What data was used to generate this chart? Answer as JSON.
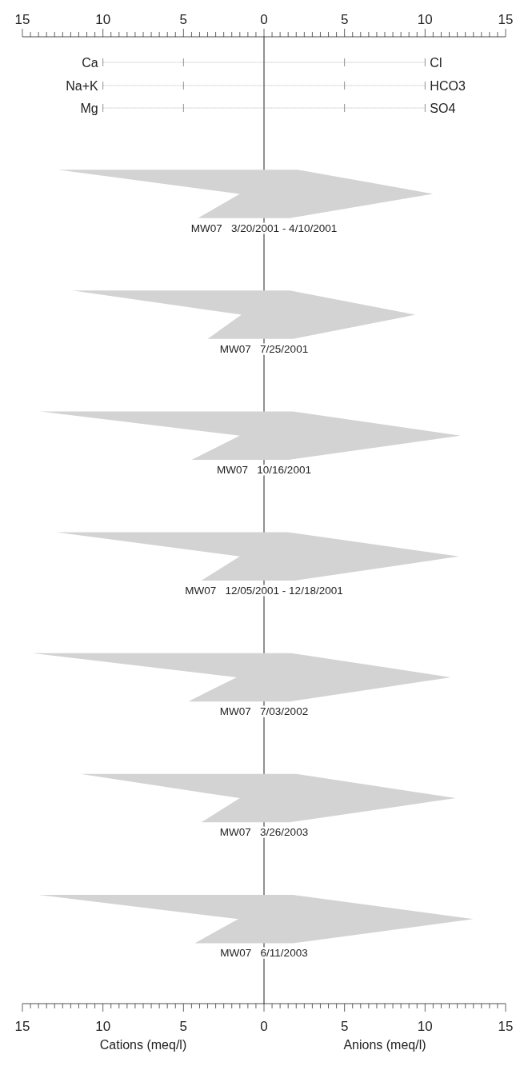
{
  "chart_data": {
    "type": "area",
    "orientation": "horizontal",
    "annotations": [
      "Ca",
      "Na+K",
      "Mg",
      "Cl",
      "HCO3",
      "SO4",
      "Cations (meq/l)",
      "Anions (meq/l)"
    ],
    "categories": [
      null,
      null,
      null,
      null,
      null,
      null,
      null,
      null,
      null,
      null,
      null,
      null,
      null,
      null,
      null,
      null,
      null,
      null,
      null,
      null,
      null,
      null,
      null,
      null,
      null,
      null,
      null,
      null,
      null,
      null,
      null,
      null,
      null,
      null,
      null,
      null,
      null,
      null,
      null,
      null
    ],
    "xlim": [
      -15,
      15
    ],
    "x2lim": [
      -15,
      15
    ],
    "xticks": [
      {
        "value": -15,
        "label": "15"
      },
      {
        "value": -14.5,
        "label": null
      },
      {
        "value": -14,
        "label": null
      },
      {
        "value": -13.5,
        "label": null
      },
      {
        "value": -13,
        "label": null
      },
      {
        "value": -12.5,
        "label": null
      },
      {
        "value": -12,
        "label": null
      },
      {
        "value": -11.5,
        "label": null
      },
      {
        "value": -11,
        "label": null
      },
      {
        "value": -10.5,
        "label": null
      },
      {
        "value": -10,
        "label": "10"
      },
      {
        "value": -9.5,
        "label": null
      },
      {
        "value": -9,
        "label": null
      },
      {
        "value": -8.5,
        "label": null
      },
      {
        "value": -8,
        "label": null
      },
      {
        "value": -7.5,
        "label": null
      },
      {
        "value": -7,
        "label": null
      },
      {
        "value": -6.5,
        "label": null
      },
      {
        "value": -6,
        "label": null
      },
      {
        "value": -5.5,
        "label": null
      },
      {
        "value": -5,
        "label": "5"
      },
      {
        "value": -4.5,
        "label": null
      },
      {
        "value": -4,
        "label": null
      },
      {
        "value": -3.5,
        "label": null
      },
      {
        "value": -3,
        "label": null
      },
      {
        "value": -2.5,
        "label": null
      },
      {
        "value": -2,
        "label": null
      },
      {
        "value": -1.5,
        "label": null
      },
      {
        "value": -1,
        "label": null
      },
      {
        "value": -0.5,
        "label": null
      },
      0,
      {
        "value": 0.5,
        "label": null
      },
      {
        "value": 1,
        "label": null
      },
      {
        "value": 1.5,
        "label": null
      },
      {
        "value": 2,
        "label": null
      },
      {
        "value": 2.5,
        "label": null
      },
      {
        "value": 3,
        "label": null
      },
      {
        "value": 3.5,
        "label": null
      },
      {
        "value": 4,
        "label": null
      },
      {
        "value": 4.5,
        "label": null
      },
      5,
      {
        "value": 5.5,
        "label": null
      },
      {
        "value": 6,
        "label": null
      },
      {
        "value": 6.5,
        "label": null
      },
      {
        "value": 7,
        "label": null
      },
      {
        "value": 7.5,
        "label": null
      },
      {
        "value": 8,
        "label": null
      },
      {
        "value": 8.5,
        "label": null
      },
      {
        "value": 9,
        "label": null
      },
      {
        "value": 9.5,
        "label": null
      },
      10,
      {
        "value": 10.5,
        "label": null
      },
      {
        "value": 11,
        "label": null
      },
      {
        "value": 11.5,
        "label": null
      },
      {
        "value": 12,
        "label": null
      },
      {
        "value": 12.5,
        "label": null
      },
      {
        "value": 13,
        "label": null
      },
      {
        "value": 13.5,
        "label": null
      },
      {
        "value": 14,
        "label": null
      },
      {
        "value": 14.5,
        "label": null
      },
      15
    ],
    "x2ticks": [
      {
        "value": -15,
        "label": "15"
      },
      {
        "value": -14.5,
        "label": null
      },
      {
        "value": -14,
        "label": null
      },
      {
        "value": -13.5,
        "label": null
      },
      {
        "value": -13,
        "label": null
      },
      {
        "value": -12.5,
        "label": null
      },
      {
        "value": -12,
        "label": null
      },
      {
        "value": -11.5,
        "label": null
      },
      {
        "value": -11,
        "label": null
      },
      {
        "value": -10.5,
        "label": null
      },
      {
        "value": -10,
        "label": "10"
      },
      {
        "value": -9.5,
        "label": null
      },
      {
        "value": -9,
        "label": null
      },
      {
        "value": -8.5,
        "label": null
      },
      {
        "value": -8,
        "label": null
      },
      {
        "value": -7.5,
        "label": null
      },
      {
        "value": -7,
        "label": null
      },
      {
        "value": -6.5,
        "label": null
      },
      {
        "value": -6,
        "label": null
      },
      {
        "value": -5.5,
        "label": null
      },
      {
        "value": -5,
        "label": "5"
      },
      {
        "value": -4.5,
        "label": null
      },
      {
        "value": -4,
        "label": null
      },
      {
        "value": -3.5,
        "label": null
      },
      {
        "value": -3,
        "label": null
      },
      {
        "value": -2.5,
        "label": null
      },
      {
        "value": -2,
        "label": null
      },
      {
        "value": -1.5,
        "label": null
      },
      {
        "value": -1,
        "label": null
      },
      {
        "value": -0.5,
        "label": null
      },
      0,
      {
        "value": 0.5,
        "label": null
      },
      {
        "value": 1,
        "label": null
      },
      {
        "value": 1.5,
        "label": null
      },
      {
        "value": 2,
        "label": null
      },
      {
        "value": 2.5,
        "label": null
      },
      {
        "value": 3,
        "label": null
      },
      {
        "value": 3.5,
        "label": null
      },
      {
        "value": 4,
        "label": null
      },
      {
        "value": 4.5,
        "label": null
      },
      5,
      {
        "value": 5.5,
        "label": null
      },
      {
        "value": 6,
        "label": null
      },
      {
        "value": 6.5,
        "label": null
      },
      {
        "value": 7,
        "label": null
      },
      {
        "value": 7.5,
        "label": null
      },
      {
        "value": 8,
        "label": null
      },
      {
        "value": 8.5,
        "label": null
      },
      {
        "value": 9,
        "label": null
      },
      {
        "value": 9.5,
        "label": null
      },
      10,
      {
        "value": 10.5,
        "label": null
      },
      {
        "value": 11,
        "label": null
      },
      {
        "value": 11.5,
        "label": null
      },
      {
        "value": 12,
        "label": null
      },
      {
        "value": 12.5,
        "label": null
      },
      {
        "value": 13,
        "label": null
      },
      {
        "value": 13.5,
        "label": null
      },
      {
        "value": 14,
        "label": null
      },
      {
        "value": 14.5,
        "label": null
      },
      15
    ],
    "series": [
      {
        "name": "MW07   3/20/2001 - 4/10/2001",
        "color": "#d3d3d3",
        "values": [
          null,
          null,
          null,
          null,
          null,
          -12.8,
          -1.5,
          -4.1,
          null,
          null,
          null,
          null,
          null,
          null,
          null,
          null,
          null,
          null,
          null,
          null,
          null,
          null,
          null,
          null,
          null,
          null,
          null,
          null,
          null,
          null,
          null,
          null,
          null,
          null,
          null,
          null,
          null,
          null,
          null,
          null
        ]
      },
      {
        "color": "#d3d3d3",
        "values": [
          null,
          null,
          null,
          null,
          null,
          2.1,
          10.5,
          1.6,
          null,
          null,
          null,
          null,
          null,
          null,
          null,
          null,
          null,
          null,
          null,
          null,
          null,
          null,
          null,
          null,
          null,
          null,
          null,
          null,
          null,
          null,
          null,
          null,
          null,
          null,
          null,
          null,
          null,
          null,
          null,
          null
        ]
      },
      {
        "name": "MW07   7/25/2001",
        "color": "#d3d3d3",
        "values": [
          null,
          null,
          null,
          null,
          null,
          null,
          null,
          null,
          null,
          null,
          -11.9,
          -1.4,
          -3.5,
          null,
          null,
          null,
          null,
          null,
          null,
          null,
          null,
          null,
          null,
          null,
          null,
          null,
          null,
          null,
          null,
          null,
          null,
          null,
          null,
          null,
          null,
          null,
          null,
          null,
          null,
          null
        ]
      },
      {
        "color": "#d3d3d3",
        "values": [
          null,
          null,
          null,
          null,
          null,
          null,
          null,
          null,
          null,
          null,
          1.6,
          9.4,
          1.8,
          null,
          null,
          null,
          null,
          null,
          null,
          null,
          null,
          null,
          null,
          null,
          null,
          null,
          null,
          null,
          null,
          null,
          null,
          null,
          null,
          null,
          null,
          null,
          null,
          null,
          null,
          null
        ]
      },
      {
        "name": "MW07   10/16/2001",
        "color": "#d3d3d3",
        "values": [
          null,
          null,
          null,
          null,
          null,
          null,
          null,
          null,
          null,
          null,
          null,
          null,
          null,
          null,
          null,
          -13.9,
          -1.5,
          -4.5,
          null,
          null,
          null,
          null,
          null,
          null,
          null,
          null,
          null,
          null,
          null,
          null,
          null,
          null,
          null,
          null,
          null,
          null,
          null,
          null,
          null,
          null
        ]
      },
      {
        "color": "#d3d3d3",
        "values": [
          null,
          null,
          null,
          null,
          null,
          null,
          null,
          null,
          null,
          null,
          null,
          null,
          null,
          null,
          null,
          1.8,
          12.2,
          1.5,
          null,
          null,
          null,
          null,
          null,
          null,
          null,
          null,
          null,
          null,
          null,
          null,
          null,
          null,
          null,
          null,
          null,
          null,
          null,
          null,
          null,
          null
        ]
      },
      {
        "name": "MW07   12/05/2001 - 12/18/2001",
        "color": "#d3d3d3",
        "values": [
          null,
          null,
          null,
          null,
          null,
          null,
          null,
          null,
          null,
          null,
          null,
          null,
          null,
          null,
          null,
          null,
          null,
          null,
          null,
          null,
          -12.9,
          -1.5,
          -3.9,
          null,
          null,
          null,
          null,
          null,
          null,
          null,
          null,
          null,
          null,
          null,
          null,
          null,
          null,
          null,
          null,
          null
        ]
      },
      {
        "color": "#d3d3d3",
        "values": [
          null,
          null,
          null,
          null,
          null,
          null,
          null,
          null,
          null,
          null,
          null,
          null,
          null,
          null,
          null,
          null,
          null,
          null,
          null,
          null,
          1.5,
          12.1,
          1.9,
          null,
          null,
          null,
          null,
          null,
          null,
          null,
          null,
          null,
          null,
          null,
          null,
          null,
          null,
          null,
          null,
          null
        ]
      },
      {
        "name": "MW07   7/03/2002",
        "color": "#d3d3d3",
        "values": [
          null,
          null,
          null,
          null,
          null,
          null,
          null,
          null,
          null,
          null,
          null,
          null,
          null,
          null,
          null,
          null,
          null,
          null,
          null,
          null,
          null,
          null,
          null,
          null,
          null,
          -14.4,
          -1.7,
          -4.7,
          null,
          null,
          null,
          null,
          null,
          null,
          null,
          null,
          null,
          null,
          null,
          null
        ]
      },
      {
        "color": "#d3d3d3",
        "values": [
          null,
          null,
          null,
          null,
          null,
          null,
          null,
          null,
          null,
          null,
          null,
          null,
          null,
          null,
          null,
          null,
          null,
          null,
          null,
          null,
          null,
          null,
          null,
          null,
          null,
          1.7,
          11.6,
          1.6,
          null,
          null,
          null,
          null,
          null,
          null,
          null,
          null,
          null,
          null,
          null,
          null
        ]
      },
      {
        "name": "MW07   3/26/2003",
        "color": "#d3d3d3",
        "values": [
          null,
          null,
          null,
          null,
          null,
          null,
          null,
          null,
          null,
          null,
          null,
          null,
          null,
          null,
          null,
          null,
          null,
          null,
          null,
          null,
          null,
          null,
          null,
          null,
          null,
          null,
          null,
          null,
          null,
          null,
          -11.4,
          -1.5,
          -3.9,
          null,
          null,
          null,
          null,
          null,
          null,
          null
        ]
      },
      {
        "color": "#d3d3d3",
        "values": [
          null,
          null,
          null,
          null,
          null,
          null,
          null,
          null,
          null,
          null,
          null,
          null,
          null,
          null,
          null,
          null,
          null,
          null,
          null,
          null,
          null,
          null,
          null,
          null,
          null,
          null,
          null,
          null,
          null,
          null,
          2.0,
          11.9,
          1.6,
          null,
          null,
          null,
          null,
          null,
          null,
          null
        ]
      },
      {
        "name": "MW07   6/11/2003",
        "color": "#d3d3d3",
        "values": [
          null,
          null,
          null,
          null,
          null,
          null,
          null,
          null,
          null,
          null,
          null,
          null,
          null,
          null,
          null,
          null,
          null,
          null,
          null,
          null,
          null,
          null,
          null,
          null,
          null,
          null,
          null,
          null,
          null,
          null,
          null,
          null,
          null,
          null,
          null,
          -14.0,
          -1.6,
          -4.3,
          null,
          null
        ]
      },
      {
        "color": "#d3d3d3",
        "values": [
          null,
          null,
          null,
          null,
          null,
          null,
          null,
          null,
          null,
          null,
          null,
          null,
          null,
          null,
          null,
          null,
          null,
          null,
          null,
          null,
          null,
          null,
          null,
          null,
          null,
          null,
          null,
          null,
          null,
          null,
          null,
          null,
          null,
          null,
          null,
          1.8,
          13.0,
          1.8,
          null,
          null
        ]
      }
    ]
  }
}
